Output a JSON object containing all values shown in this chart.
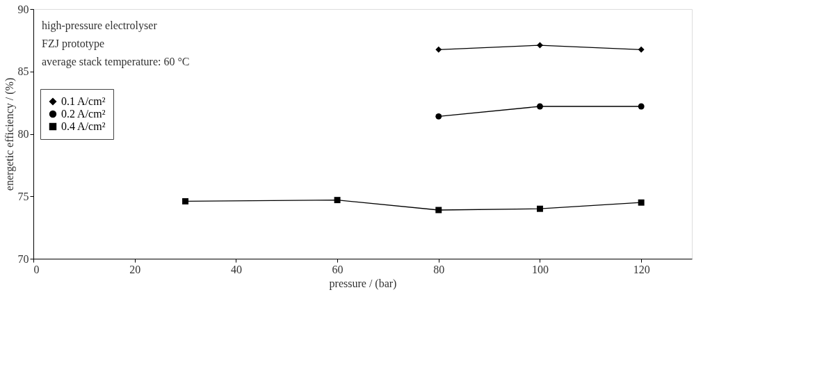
{
  "chart_data": {
    "type": "line",
    "xlabel": "pressure / (bar)",
    "ylabel": "energetic efficiency / (%)",
    "annotations": [
      "high-pressure electrolyser",
      "FZJ prototype",
      "average stack temperature: 60 °C"
    ],
    "series": [
      {
        "name": "0.1 A/cm²",
        "color": "#000000",
        "marker": "diamond",
        "x": [
          80,
          100,
          120
        ],
        "values": [
          86.75,
          87.1,
          86.75
        ]
      },
      {
        "name": "0.2 A/cm²",
        "color": "#000000",
        "marker": "circle",
        "x": [
          80,
          100,
          120
        ],
        "values": [
          81.4,
          82.2,
          82.2
        ]
      },
      {
        "name": "0.4 A/cm²",
        "color": "#000000",
        "marker": "square",
        "x": [
          30,
          60,
          80,
          100,
          120
        ],
        "values": [
          74.6,
          74.7,
          73.9,
          74.0,
          74.5
        ]
      }
    ],
    "xlim": [
      0,
      130
    ],
    "xticks": [
      0,
      20,
      40,
      60,
      80,
      100,
      120
    ],
    "ylim": [
      70,
      90
    ],
    "yticks": [
      70,
      75,
      80,
      85,
      90
    ],
    "grid": false,
    "legend": "top left",
    "line_style": "solid"
  }
}
